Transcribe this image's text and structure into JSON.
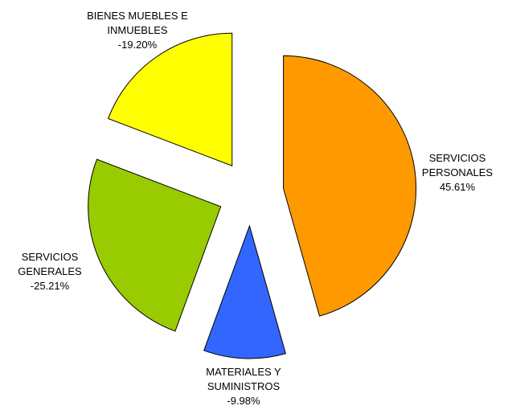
{
  "chart_data": {
    "type": "pie",
    "categories": [
      "SERVICIOS PERSONALES",
      "MATERIALES Y SUMINISTROS",
      "SERVICIOS GENERALES",
      "BIENES MUEBLES E INMUEBLES"
    ],
    "values": [
      45.61,
      -9.98,
      -25.21,
      -19.2
    ],
    "value_labels": [
      "45.61%",
      "-9.98%",
      "-25.21%",
      "-19.20%"
    ],
    "colors": [
      "#FF9900",
      "#3366FF",
      "#99CC00",
      "#FFFF00"
    ]
  }
}
